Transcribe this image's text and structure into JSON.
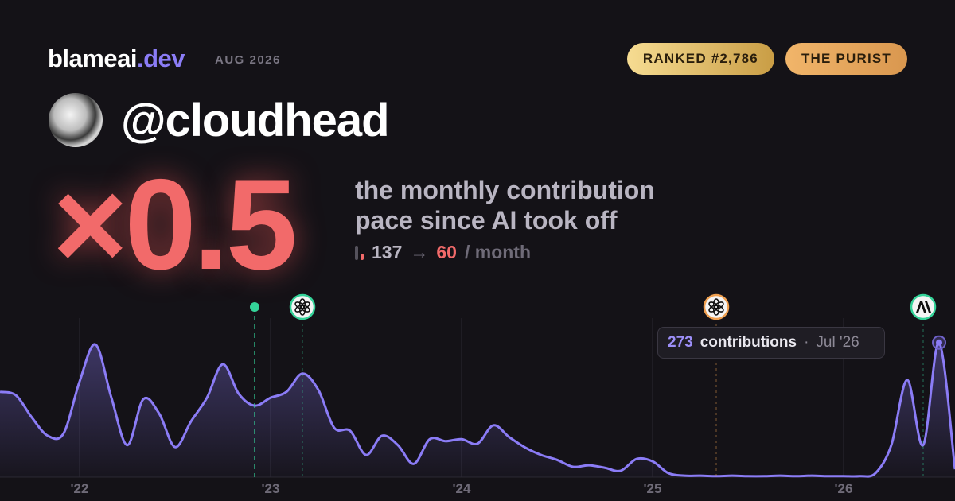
{
  "header": {
    "brand": "blameai",
    "brand_suffix": ".dev",
    "date": "AUG 2026",
    "badges": [
      "RANKED #2,786",
      "THE PURIST"
    ]
  },
  "profile": {
    "handle": "@cloudhead"
  },
  "headline": {
    "multiplier": "×0.5",
    "description_lines": [
      "the monthly contribution",
      "pace since AI took off"
    ],
    "before": 137,
    "arrow": "→",
    "after": 60,
    "unit": "/ month"
  },
  "chart_data": {
    "type": "area",
    "color": "#8b7cf6",
    "x": [
      "2021-08",
      "2021-09",
      "2021-10",
      "2021-11",
      "2021-12",
      "2022-01",
      "2022-02",
      "2022-03",
      "2022-04",
      "2022-05",
      "2022-06",
      "2022-07",
      "2022-08",
      "2022-09",
      "2022-10",
      "2022-11",
      "2022-12",
      "2023-01",
      "2023-02",
      "2023-03",
      "2023-04",
      "2023-05",
      "2023-06",
      "2023-07",
      "2023-08",
      "2023-09",
      "2023-10",
      "2023-11",
      "2023-12",
      "2024-01",
      "2024-02",
      "2024-03",
      "2024-04",
      "2024-05",
      "2024-06",
      "2024-07",
      "2024-08",
      "2024-09",
      "2024-10",
      "2024-11",
      "2024-12",
      "2025-01",
      "2025-02",
      "2025-03",
      "2025-04",
      "2025-05",
      "2025-06",
      "2025-07",
      "2025-08",
      "2025-09",
      "2025-10",
      "2025-11",
      "2025-12",
      "2026-01",
      "2026-02",
      "2026-03",
      "2026-04",
      "2026-05",
      "2026-06",
      "2026-07",
      "2026-08"
    ],
    "values": [
      173,
      166,
      121,
      84,
      89,
      194,
      269,
      161,
      65,
      158,
      129,
      61,
      113,
      161,
      229,
      169,
      145,
      161,
      173,
      210,
      177,
      100,
      94,
      45,
      84,
      65,
      27,
      77,
      73,
      77,
      68,
      105,
      81,
      60,
      45,
      35,
      21,
      24,
      19,
      13,
      37,
      32,
      8,
      3,
      3,
      2,
      3,
      2,
      2,
      3,
      2,
      3,
      2,
      2,
      2,
      8,
      65,
      197,
      65,
      273,
      16
    ],
    "xlim": [
      "2021-08",
      "2026-08"
    ],
    "ylim": [
      0,
      300
    ],
    "xticks": [
      {
        "value": "2022-01",
        "label": "'22"
      },
      {
        "value": "2023-01",
        "label": "'23"
      },
      {
        "value": "2024-01",
        "label": "'24"
      },
      {
        "value": "2025-01",
        "label": "'25"
      },
      {
        "value": "2026-01",
        "label": "'26"
      }
    ],
    "grid": true,
    "events": [
      {
        "x": "2022-12",
        "kind": "dot",
        "color": "#34d399"
      },
      {
        "x": "2023-03",
        "kind": "openai",
        "color": "#34d399"
      },
      {
        "x": "2025-05",
        "kind": "openai",
        "color": "#f0a050"
      },
      {
        "x": "2026-06",
        "kind": "anthropic",
        "color": "#34d399"
      }
    ],
    "tooltip": {
      "value": 273,
      "label": "contributions",
      "separator": "·",
      "date": "Jul '26"
    }
  }
}
